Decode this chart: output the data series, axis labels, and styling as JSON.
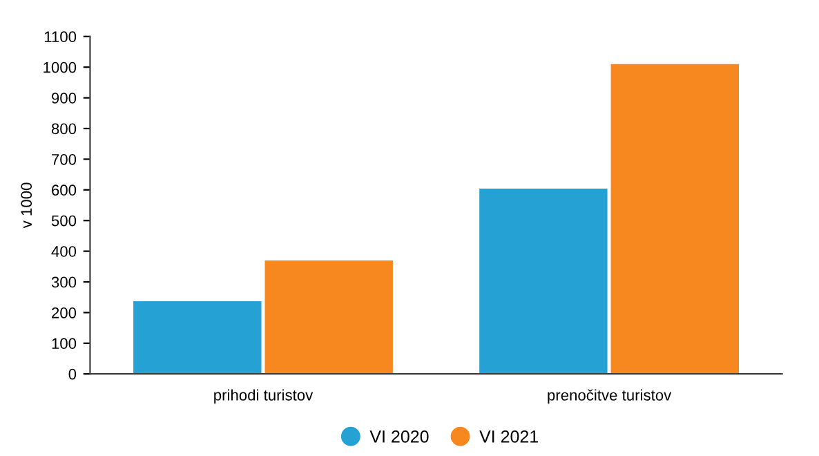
{
  "chart_data": {
    "type": "bar",
    "ylabel": "v 1000",
    "categories": [
      "prihodi turistov",
      "prenočitve turistov"
    ],
    "series": [
      {
        "name": "VI 2020",
        "color": "#25a1d4",
        "values": [
          237,
          604
        ]
      },
      {
        "name": "VI 2021",
        "color": "#f7871f",
        "values": [
          370,
          1010
        ]
      }
    ],
    "ylim": [
      0,
      1100
    ],
    "yticks": [
      0,
      100,
      200,
      300,
      400,
      500,
      600,
      700,
      800,
      900,
      1000,
      1100
    ],
    "grid": false,
    "legend": "bottom"
  }
}
